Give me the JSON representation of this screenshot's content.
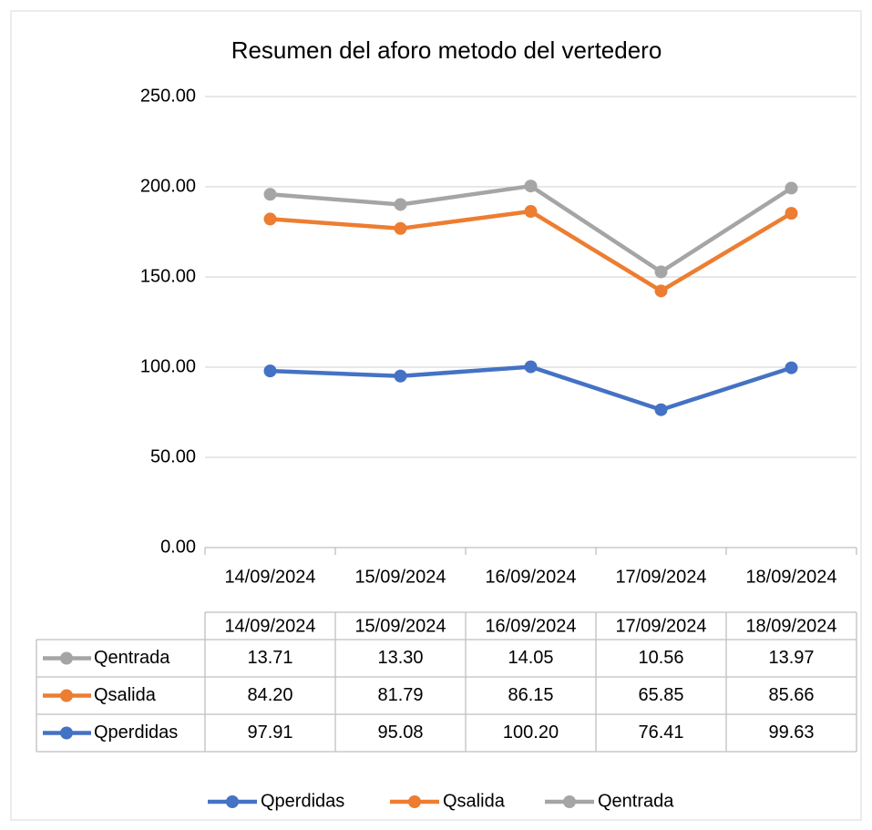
{
  "chart_data": {
    "type": "line",
    "stacked": true,
    "title": "Resumen del aforo metodo del vertedero",
    "categories": [
      "14/09/2024",
      "15/09/2024",
      "16/09/2024",
      "17/09/2024",
      "18/09/2024"
    ],
    "series": [
      {
        "name": "Qperdidas",
        "color": "#4472c4",
        "values": [
          97.91,
          95.08,
          100.2,
          76.41,
          99.63
        ],
        "value_labels": [
          "97.91",
          "95.08",
          "100.20",
          "76.41",
          "99.63"
        ]
      },
      {
        "name": "Qsalida",
        "color": "#ed7d31",
        "values": [
          84.2,
          81.79,
          86.15,
          65.85,
          85.66
        ],
        "value_labels": [
          "84.20",
          "81.79",
          "86.15",
          "65.85",
          "85.66"
        ]
      },
      {
        "name": "Qentrada",
        "color": "#a5a5a5",
        "values": [
          13.71,
          13.3,
          14.05,
          10.56,
          13.97
        ],
        "value_labels": [
          "13.71",
          "13.30",
          "14.05",
          "10.56",
          "13.97"
        ]
      }
    ],
    "ylim": [
      0,
      250
    ],
    "yticks": [
      {
        "value": 0,
        "label": "0.00"
      },
      {
        "value": 50,
        "label": "50.00"
      },
      {
        "value": 100,
        "label": "100.00"
      },
      {
        "value": 150,
        "label": "150.00"
      },
      {
        "value": 200,
        "label": "200.00"
      },
      {
        "value": 250,
        "label": "250.00"
      }
    ],
    "grid": true,
    "legend": "bottom",
    "data_table": true
  }
}
